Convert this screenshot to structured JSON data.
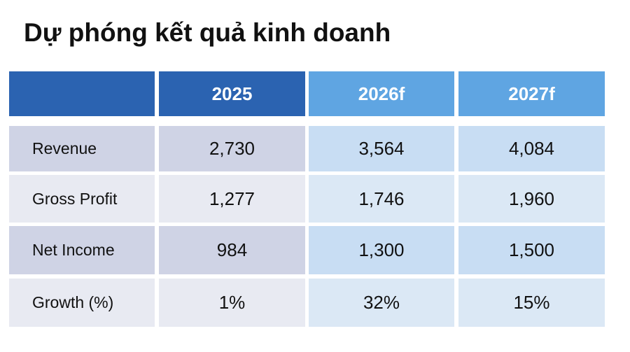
{
  "header": {
    "title": "Dự phóng kết quả kinh doanh"
  },
  "table": {
    "columns": [
      "2025",
      "2026f",
      "2027f"
    ],
    "rows": [
      [
        "Revenue",
        "2,730",
        "3,564",
        "4,084"
      ],
      [
        "Gross Profit",
        "1,277",
        "1,746",
        "1,960"
      ],
      [
        "Net Income",
        "984",
        "1,300",
        "1,500"
      ],
      [
        "Growth (%)",
        "1%",
        "32%",
        "15%"
      ]
    ]
  }
}
